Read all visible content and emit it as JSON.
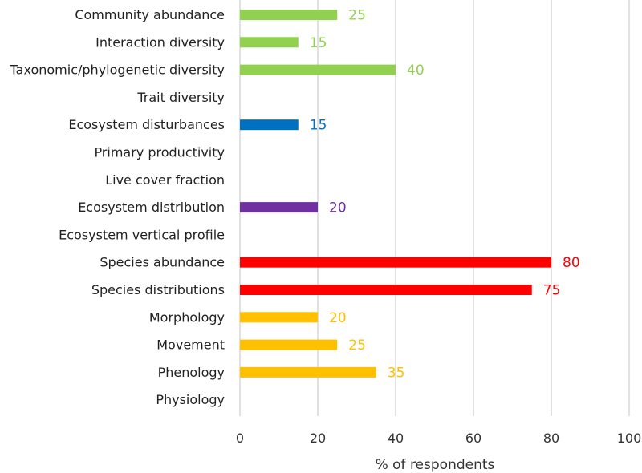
{
  "chart_data": {
    "type": "bar",
    "orientation": "horizontal",
    "categories": [
      "Community abundance",
      "Interaction diversity",
      "Taxonomic/phylogenetic diversity",
      "Trait diversity",
      "Ecosystem disturbances",
      "Primary productivity",
      "Live cover fraction",
      "Ecosystem distribution",
      "Ecosystem vertical profile",
      "Species abundance",
      "Species distributions",
      "Morphology",
      "Movement",
      "Phenology",
      "Physiology"
    ],
    "values": [
      25,
      15,
      40,
      0,
      15,
      0,
      0,
      20,
      0,
      80,
      75,
      20,
      25,
      35,
      0
    ],
    "data_labels": [
      "25",
      "15",
      "40",
      "",
      "15",
      "",
      "",
      "20",
      "",
      "80",
      "75",
      "20",
      "25",
      "35",
      ""
    ],
    "colors": [
      "#92D050",
      "#92D050",
      "#92D050",
      "#92D050",
      "#0070C0",
      "#0070C0",
      "#0070C0",
      "#7030A0",
      "#7030A0",
      "#FF0000",
      "#FF0000",
      "#FFC000",
      "#FFC000",
      "#FFC000",
      "#FFC000"
    ],
    "xlabel": "% of respondents",
    "ylabel": "",
    "xlim": [
      0,
      100
    ],
    "xticks": [
      "0",
      "20",
      "40",
      "60",
      "80",
      "100"
    ],
    "grid": "vertical",
    "legend": "none"
  }
}
